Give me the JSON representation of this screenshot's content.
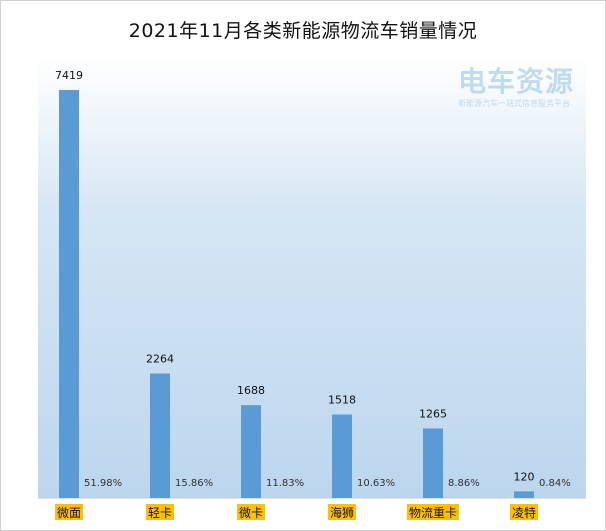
{
  "chart_data": {
    "type": "bar",
    "title": "2021年11月各类新能源物流车销量情况",
    "categories": [
      "微面",
      "轻卡",
      "微卡",
      "海狮",
      "物流重卡",
      "凌特"
    ],
    "values": [
      7419,
      2264,
      1688,
      1518,
      1265,
      120
    ],
    "shares": [
      "51.98%",
      "15.86%",
      "11.83%",
      "10.63%",
      "8.86%",
      "0.84%"
    ],
    "ylim": [
      0,
      8000
    ],
    "bar_color": "#5b9bd5",
    "category_highlight_color": "#ffc000",
    "grid": false,
    "legend": "none"
  },
  "watermark": {
    "main": "电车资源",
    "sub": "新能源汽车一站式信息服务平台"
  }
}
